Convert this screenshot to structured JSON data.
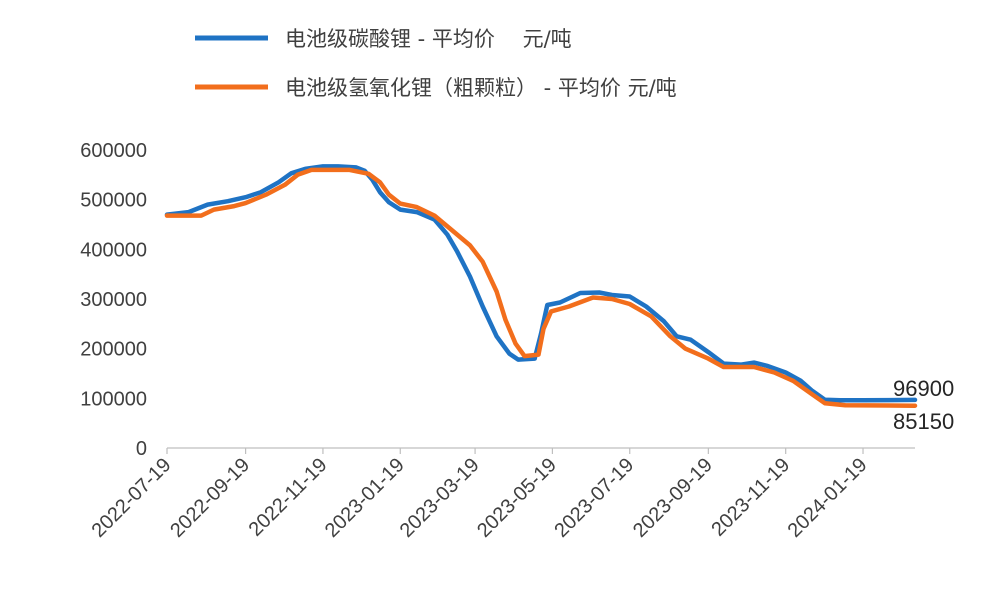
{
  "chart_data": {
    "type": "line",
    "title": "",
    "xlabel": "",
    "ylabel": "",
    "ylim": [
      0,
      600000
    ],
    "y_ticks": [
      "0",
      "100000",
      "200000",
      "300000",
      "400000",
      "500000",
      "600000"
    ],
    "x_tick_labels": [
      "2022-07-19",
      "2022-09-19",
      "2022-11-19",
      "2023-01-19",
      "2023-03-19",
      "2023-05-19",
      "2023-07-19",
      "2023-09-19",
      "2023-11-19",
      "2024-01-19"
    ],
    "x_range": [
      "2022-07-19",
      "2024-02-29"
    ],
    "grid": false,
    "legend_position": "top",
    "series": [
      {
        "name": "电池级碳酸锂 - 平均价　 元/吨",
        "color": "#1f73c4",
        "points": [
          [
            "2022-07-19",
            470000
          ],
          [
            "2022-08-05",
            475000
          ],
          [
            "2022-08-20",
            490000
          ],
          [
            "2022-09-05",
            497000
          ],
          [
            "2022-09-19",
            505000
          ],
          [
            "2022-10-01",
            515000
          ],
          [
            "2022-10-15",
            535000
          ],
          [
            "2022-10-25",
            553000
          ],
          [
            "2022-11-05",
            562000
          ],
          [
            "2022-11-19",
            567000
          ],
          [
            "2022-12-01",
            567000
          ],
          [
            "2022-12-15",
            565000
          ],
          [
            "2022-12-22",
            558000
          ],
          [
            "2022-12-28",
            540000
          ],
          [
            "2023-01-03",
            515000
          ],
          [
            "2023-01-10",
            495000
          ],
          [
            "2023-01-19",
            480000
          ],
          [
            "2023-02-01",
            475000
          ],
          [
            "2023-02-15",
            460000
          ],
          [
            "2023-02-25",
            430000
          ],
          [
            "2023-03-05",
            395000
          ],
          [
            "2023-03-15",
            345000
          ],
          [
            "2023-03-25",
            285000
          ],
          [
            "2023-04-05",
            225000
          ],
          [
            "2023-04-15",
            190000
          ],
          [
            "2023-04-22",
            178000
          ],
          [
            "2023-05-05",
            180000
          ],
          [
            "2023-05-10",
            230000
          ],
          [
            "2023-05-15",
            288000
          ],
          [
            "2023-05-25",
            293000
          ],
          [
            "2023-06-10",
            312000
          ],
          [
            "2023-06-25",
            313000
          ],
          [
            "2023-07-05",
            308000
          ],
          [
            "2023-07-19",
            305000
          ],
          [
            "2023-08-01",
            285000
          ],
          [
            "2023-08-15",
            255000
          ],
          [
            "2023-08-25",
            225000
          ],
          [
            "2023-09-05",
            218000
          ],
          [
            "2023-09-19",
            193000
          ],
          [
            "2023-10-01",
            170000
          ],
          [
            "2023-10-15",
            168000
          ],
          [
            "2023-10-25",
            172000
          ],
          [
            "2023-11-05",
            165000
          ],
          [
            "2023-11-19",
            152000
          ],
          [
            "2023-12-01",
            135000
          ],
          [
            "2023-12-10",
            115000
          ],
          [
            "2023-12-20",
            97000
          ],
          [
            "2024-01-01",
            96000
          ],
          [
            "2024-01-19",
            96000
          ],
          [
            "2024-02-29",
            96900
          ]
        ]
      },
      {
        "name": "电池级氢氧化锂（粗颗粒） - 平均价 元/吨",
        "color": "#f26e1c",
        "points": [
          [
            "2022-07-19",
            468000
          ],
          [
            "2022-08-15",
            468000
          ],
          [
            "2022-08-25",
            480000
          ],
          [
            "2022-09-10",
            487000
          ],
          [
            "2022-09-19",
            493000
          ],
          [
            "2022-10-05",
            510000
          ],
          [
            "2022-10-20",
            530000
          ],
          [
            "2022-10-30",
            550000
          ],
          [
            "2022-11-10",
            560000
          ],
          [
            "2022-11-19",
            560000
          ],
          [
            "2022-12-10",
            560000
          ],
          [
            "2022-12-25",
            552000
          ],
          [
            "2023-01-03",
            535000
          ],
          [
            "2023-01-10",
            510000
          ],
          [
            "2023-01-19",
            492000
          ],
          [
            "2023-02-01",
            485000
          ],
          [
            "2023-02-15",
            468000
          ],
          [
            "2023-03-01",
            438000
          ],
          [
            "2023-03-15",
            408000
          ],
          [
            "2023-03-25",
            375000
          ],
          [
            "2023-04-05",
            315000
          ],
          [
            "2023-04-12",
            258000
          ],
          [
            "2023-04-20",
            210000
          ],
          [
            "2023-04-27",
            185000
          ],
          [
            "2023-05-08",
            188000
          ],
          [
            "2023-05-12",
            240000
          ],
          [
            "2023-05-18",
            275000
          ],
          [
            "2023-06-01",
            285000
          ],
          [
            "2023-06-20",
            303000
          ],
          [
            "2023-07-05",
            300000
          ],
          [
            "2023-07-19",
            290000
          ],
          [
            "2023-08-05",
            265000
          ],
          [
            "2023-08-20",
            225000
          ],
          [
            "2023-09-01",
            200000
          ],
          [
            "2023-09-19",
            180000
          ],
          [
            "2023-10-01",
            163000
          ],
          [
            "2023-10-25",
            163000
          ],
          [
            "2023-11-10",
            152000
          ],
          [
            "2023-11-25",
            135000
          ],
          [
            "2023-12-10",
            108000
          ],
          [
            "2023-12-20",
            90000
          ],
          [
            "2024-01-05",
            86000
          ],
          [
            "2024-02-29",
            85150
          ]
        ]
      }
    ],
    "end_labels": [
      "96900",
      "85150"
    ]
  }
}
